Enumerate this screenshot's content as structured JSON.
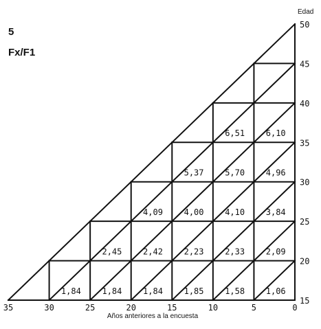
{
  "figure": {
    "panel_number": "5",
    "panel_label": "Fx/F1",
    "y_axis_title": "Edad",
    "x_axis_title": "Años anteriores a la encuesta"
  },
  "chart_data": {
    "type": "table",
    "xlabel": "Años anteriores a la encuesta",
    "ylabel": "Edad",
    "x_ticks": [
      "35",
      "30",
      "25",
      "20",
      "15",
      "10",
      "5",
      "0"
    ],
    "y_ticks": [
      "15",
      "20",
      "25",
      "30",
      "35",
      "40",
      "45",
      "50"
    ],
    "x_values": [
      35,
      30,
      25,
      20,
      15,
      10,
      5,
      0
    ],
    "y_values": [
      15,
      20,
      25,
      30,
      35,
      40,
      45,
      50
    ],
    "cells": [
      {
        "years": 30,
        "age": 15,
        "label": "1,84"
      },
      {
        "years": 25,
        "age": 15,
        "label": "1,84"
      },
      {
        "years": 20,
        "age": 15,
        "label": "1,84"
      },
      {
        "years": 15,
        "age": 15,
        "label": "1,85"
      },
      {
        "years": 10,
        "age": 15,
        "label": "1,58"
      },
      {
        "years": 5,
        "age": 15,
        "label": "1,06"
      },
      {
        "years": 25,
        "age": 20,
        "label": "2,45"
      },
      {
        "years": 20,
        "age": 20,
        "label": "2,42"
      },
      {
        "years": 15,
        "age": 20,
        "label": "2,23"
      },
      {
        "years": 10,
        "age": 20,
        "label": "2,33"
      },
      {
        "years": 5,
        "age": 20,
        "label": "2,09"
      },
      {
        "years": 20,
        "age": 25,
        "label": "4,09"
      },
      {
        "years": 15,
        "age": 25,
        "label": "4,00"
      },
      {
        "years": 10,
        "age": 25,
        "label": "4,10"
      },
      {
        "years": 5,
        "age": 25,
        "label": "3,84"
      },
      {
        "years": 15,
        "age": 30,
        "label": "5,37"
      },
      {
        "years": 10,
        "age": 30,
        "label": "5,70"
      },
      {
        "years": 5,
        "age": 30,
        "label": "4,96"
      },
      {
        "years": 10,
        "age": 35,
        "label": "6,51"
      },
      {
        "years": 5,
        "age": 35,
        "label": "6,10"
      }
    ]
  }
}
